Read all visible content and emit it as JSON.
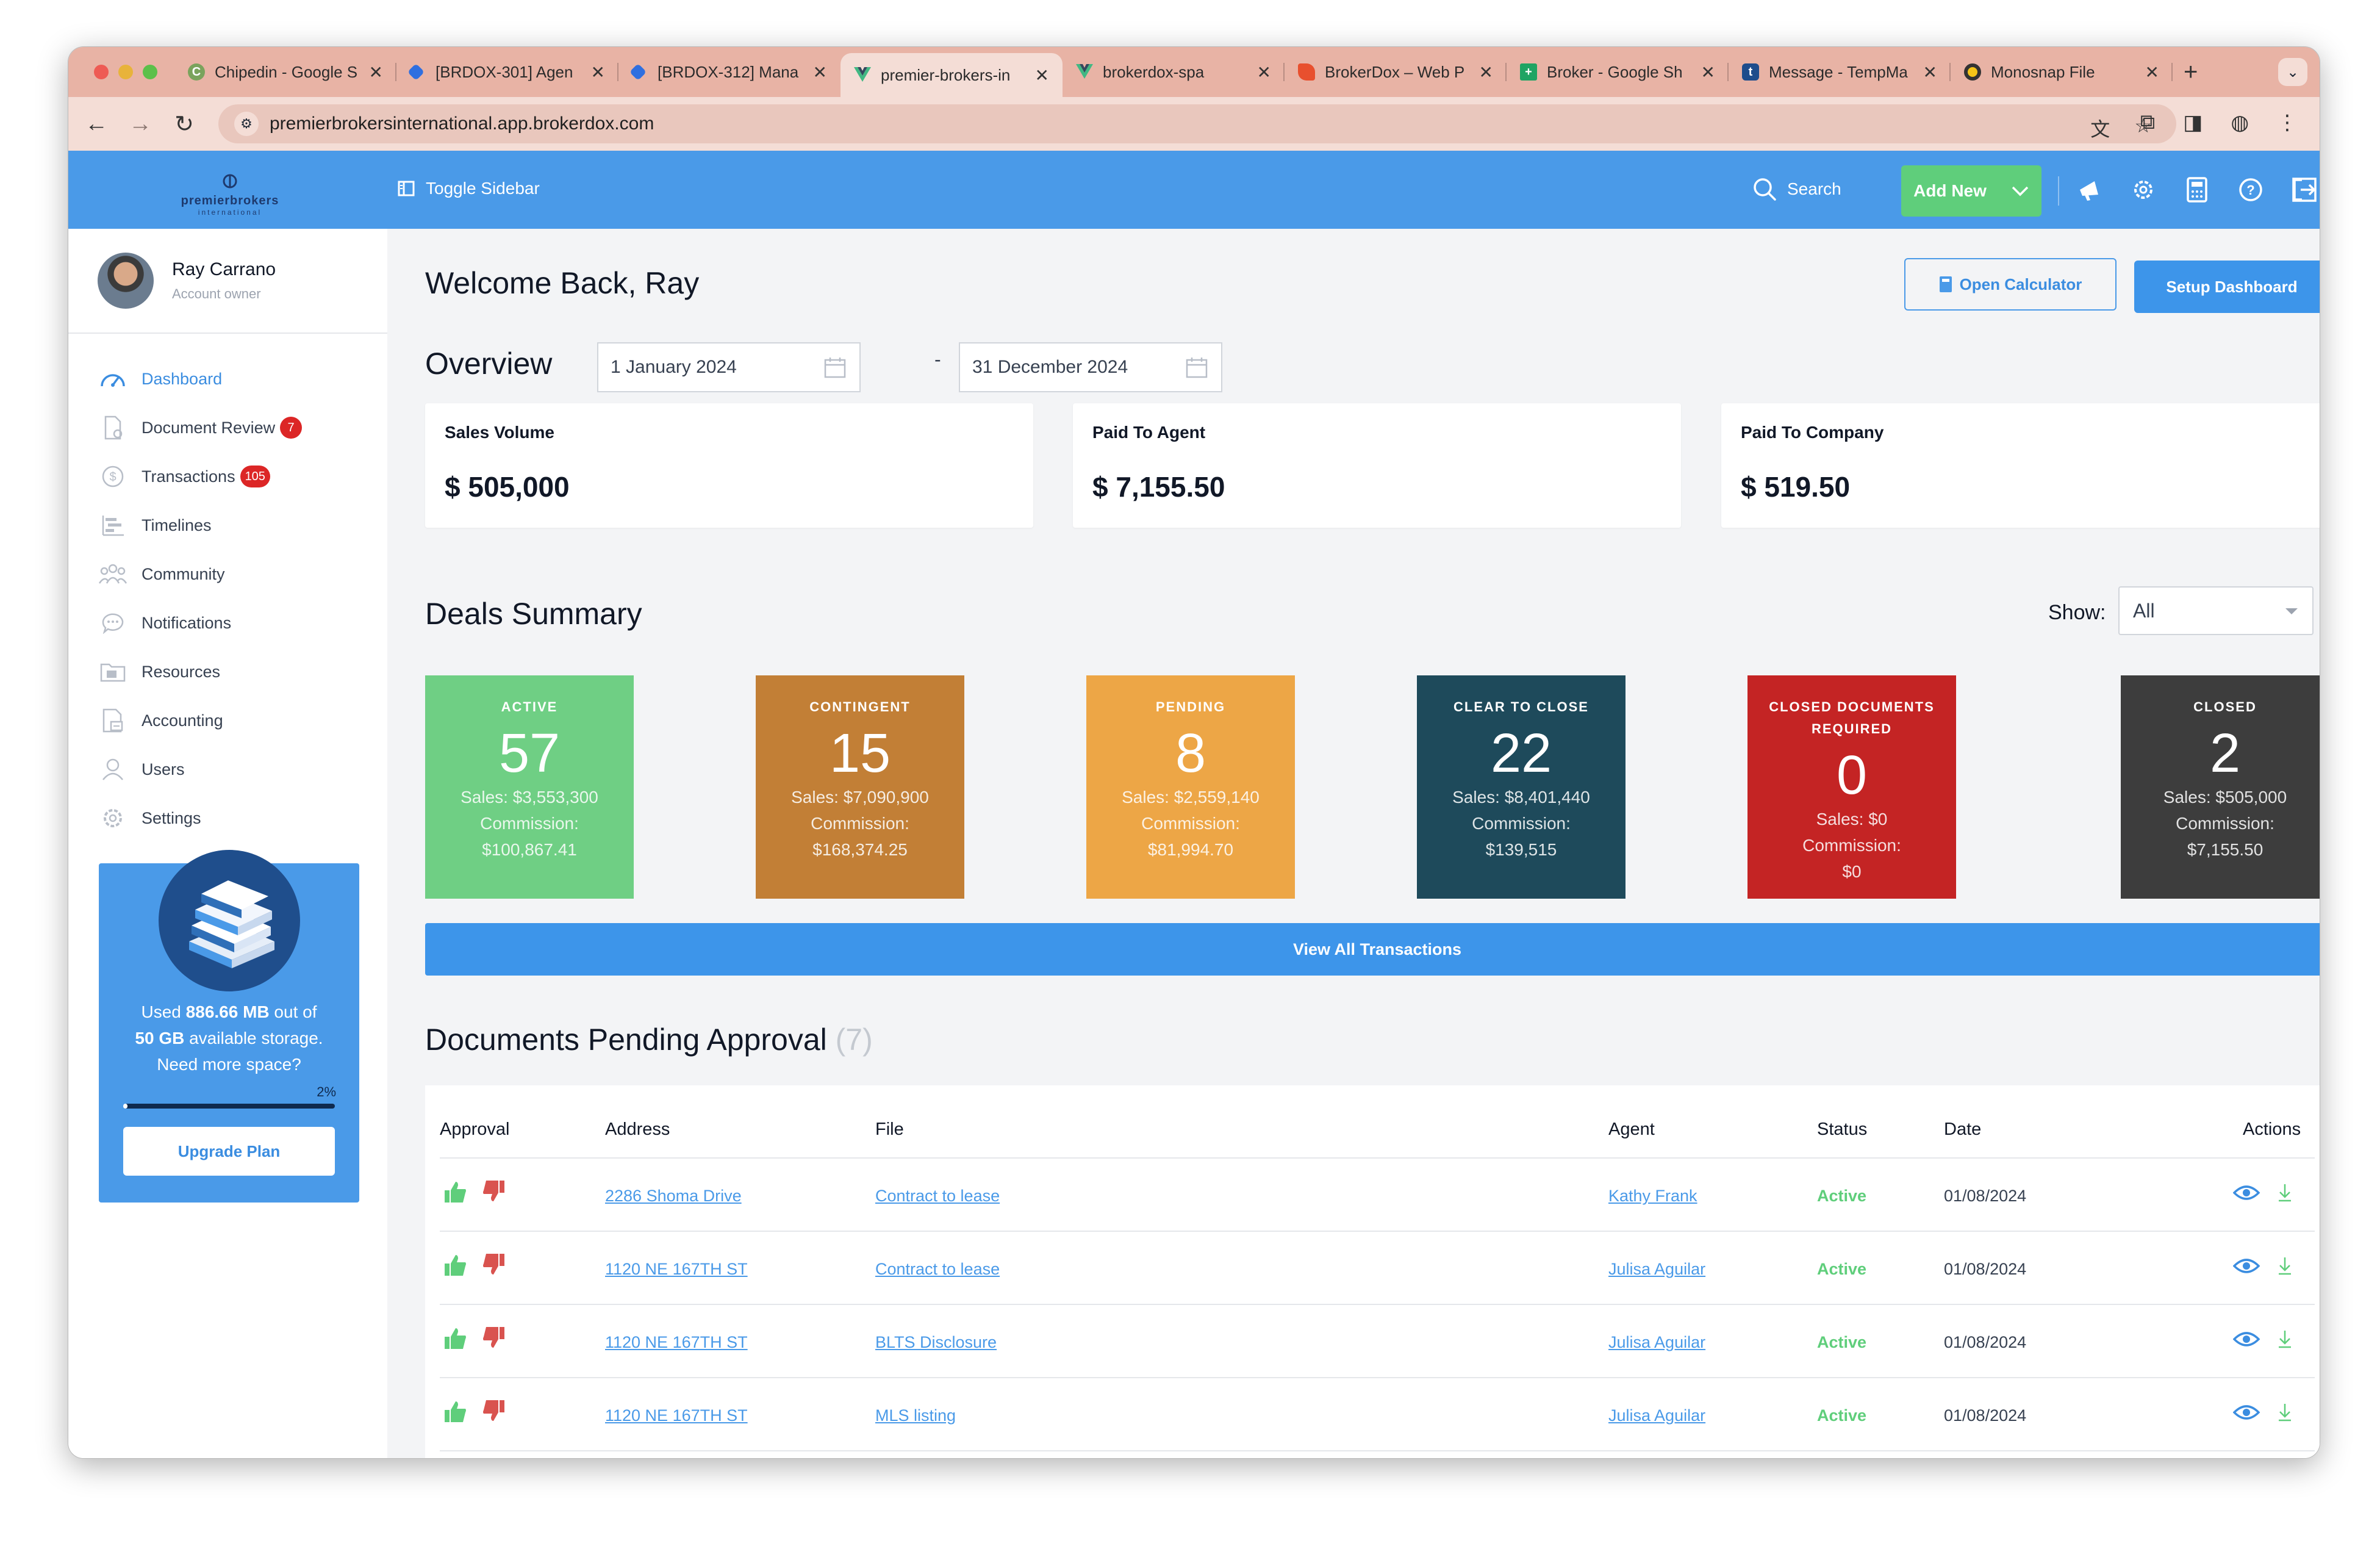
{
  "browser": {
    "tabs": [
      {
        "label": "Chipedin - Google S",
        "icon": "chipedin-icon",
        "active": false
      },
      {
        "label": "[BRDOX-301] Agen",
        "icon": "jira-icon",
        "active": false
      },
      {
        "label": "[BRDOX-312] Mana",
        "icon": "jira-icon",
        "active": false
      },
      {
        "label": "premier-brokers-in",
        "icon": "vue-icon",
        "active": true
      },
      {
        "label": "brokerdox-spa",
        "icon": "vue-icon",
        "active": false
      },
      {
        "label": "BrokerDox – Web P",
        "icon": "firebase-icon",
        "active": false
      },
      {
        "label": "Broker - Google Sh",
        "icon": "sheets-icon",
        "active": false
      },
      {
        "label": "Message - TempMa",
        "icon": "tempmail-icon",
        "active": false
      },
      {
        "label": "Monosnap File",
        "icon": "monosnap-icon",
        "active": false
      }
    ],
    "url": "premierbrokersinternational.app.brokerdox.com"
  },
  "header": {
    "logo_text": "premierbrokers",
    "logo_sub": "international",
    "toggle_label": "Toggle Sidebar",
    "search_label": "Search",
    "add_new_label": "Add New"
  },
  "profile": {
    "name": "Ray Carrano",
    "role": "Account owner"
  },
  "sidebar": {
    "items": [
      {
        "label": "Dashboard",
        "icon": "dashboard-icon",
        "active": true,
        "badge": ""
      },
      {
        "label": "Document Review",
        "icon": "document-review-icon",
        "active": false,
        "badge": "7"
      },
      {
        "label": "Transactions",
        "icon": "transactions-icon",
        "active": false,
        "badge": "105"
      },
      {
        "label": "Timelines",
        "icon": "timelines-icon",
        "active": false,
        "badge": ""
      },
      {
        "label": "Community",
        "icon": "community-icon",
        "active": false,
        "badge": ""
      },
      {
        "label": "Notifications",
        "icon": "notifications-icon",
        "active": false,
        "badge": ""
      },
      {
        "label": "Resources",
        "icon": "resources-icon",
        "active": false,
        "badge": ""
      },
      {
        "label": "Accounting",
        "icon": "accounting-icon",
        "active": false,
        "badge": ""
      },
      {
        "label": "Users",
        "icon": "users-icon",
        "active": false,
        "badge": ""
      },
      {
        "label": "Settings",
        "icon": "settings-icon",
        "active": false,
        "badge": ""
      }
    ]
  },
  "storage": {
    "used_prefix": "Used",
    "used": "886.66 MB",
    "out_of": "out of",
    "total": "50 GB",
    "available": "available storage.",
    "need_more": "Need more space?",
    "percent_label": "2%",
    "percent_value": 2,
    "upgrade_label": "Upgrade Plan"
  },
  "main": {
    "welcome": "Welcome Back, Ray",
    "open_calculator": "Open Calculator",
    "setup_dashboard": "Setup Dashboard",
    "overview_title": "Overview",
    "date_from": "1 January 2024",
    "date_to": "31 December 2024",
    "stats": [
      {
        "label": "Sales Volume",
        "value": "$ 505,000"
      },
      {
        "label": "Paid To Agent",
        "value": "$ 7,155.50"
      },
      {
        "label": "Paid To Company",
        "value": "$ 519.50"
      }
    ],
    "deals_title": "Deals Summary",
    "show_label": "Show:",
    "show_value": "All",
    "deals": [
      {
        "label": "ACTIVE",
        "count": "57",
        "sales": "Sales: $3,553,300",
        "commission_label": "Commission:",
        "commission": "$100,867.41",
        "color": "#6fcf84"
      },
      {
        "label": "CONTINGENT",
        "count": "15",
        "sales": "Sales: $7,090,900",
        "commission_label": "Commission:",
        "commission": "$168,374.25",
        "color": "#c27f36"
      },
      {
        "label": "PENDING",
        "count": "8",
        "sales": "Sales: $2,559,140",
        "commission_label": "Commission:",
        "commission": "$81,994.70",
        "color": "#eda646"
      },
      {
        "label": "CLEAR TO CLOSE",
        "count": "22",
        "sales": "Sales: $8,401,440",
        "commission_label": "Commission:",
        "commission": "$139,515",
        "color": "#1e4a5b"
      },
      {
        "label": "CLOSED DOCUMENTS REQUIRED",
        "count": "0",
        "sales": "Sales: $0",
        "commission_label": "Commission:",
        "commission": "$0",
        "color": "#c42424"
      },
      {
        "label": "CLOSED",
        "count": "2",
        "sales": "Sales: $505,000",
        "commission_label": "Commission:",
        "commission": "$7,155.50",
        "color": "#3d3d3d"
      }
    ],
    "view_all": "View All Transactions",
    "docs_title": "Documents Pending Approval",
    "docs_count": "(7)",
    "table": {
      "headers": [
        "Approval",
        "Address",
        "File",
        "Agent",
        "Status",
        "Date",
        "Actions"
      ],
      "rows": [
        {
          "address": "2286 Shoma Drive",
          "file": "Contract to lease",
          "agent": "Kathy Frank",
          "status": "Active",
          "date": "01/08/2024"
        },
        {
          "address": "1120 NE 167TH ST",
          "file": "Contract to lease",
          "agent": "Julisa Aguilar",
          "status": "Active",
          "date": "01/08/2024"
        },
        {
          "address": "1120 NE 167TH ST",
          "file": "BLTS Disclosure",
          "agent": "Julisa Aguilar",
          "status": "Active",
          "date": "01/08/2024"
        },
        {
          "address": "1120 NE 167TH ST",
          "file": "MLS listing",
          "agent": "Julisa Aguilar",
          "status": "Active",
          "date": "01/08/2024"
        }
      ]
    }
  },
  "colors": {
    "brand_blue": "#4a9ae8",
    "add_new_green": "#5fce7b",
    "badge_red": "#dc2626",
    "approve_green": "#5fce7b",
    "reject_red": "#d9534f"
  }
}
